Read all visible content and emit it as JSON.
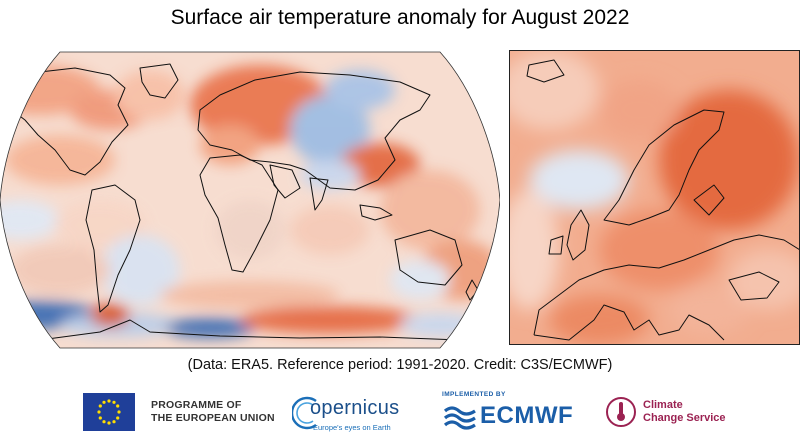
{
  "title": "Surface air temperature anomaly for August 2022",
  "credit": "(Data: ERA5.  Reference period: 1991-2020.  Credit: C3S/ECMWF)",
  "logos": {
    "eu": {
      "line1": "PROGRAMME OF",
      "line2": "THE EUROPEAN UNION"
    },
    "copernicus": {
      "name": "opernicus",
      "tagline": "Europe's eyes on Earth"
    },
    "ecmwf": {
      "implemented_by": "IMPLEMENTED BY",
      "name": "ECMWF"
    },
    "c3s": {
      "line1": "Climate",
      "line2": "Change Service"
    }
  },
  "colors": {
    "warm_strong": "#d9532a",
    "warm_mid": "#ef8a62",
    "warm_light": "#f7c6ae",
    "neutral": "#f6f2f0",
    "cool_light": "#cfdcef",
    "cool_mid": "#8fb0d9",
    "cool_strong": "#3c6fb5",
    "eu_blue": "#1f3f99",
    "eu_star": "#ffdd00",
    "ecmwf_blue": "#1b5ea8",
    "c3s_red": "#9b2252"
  }
}
